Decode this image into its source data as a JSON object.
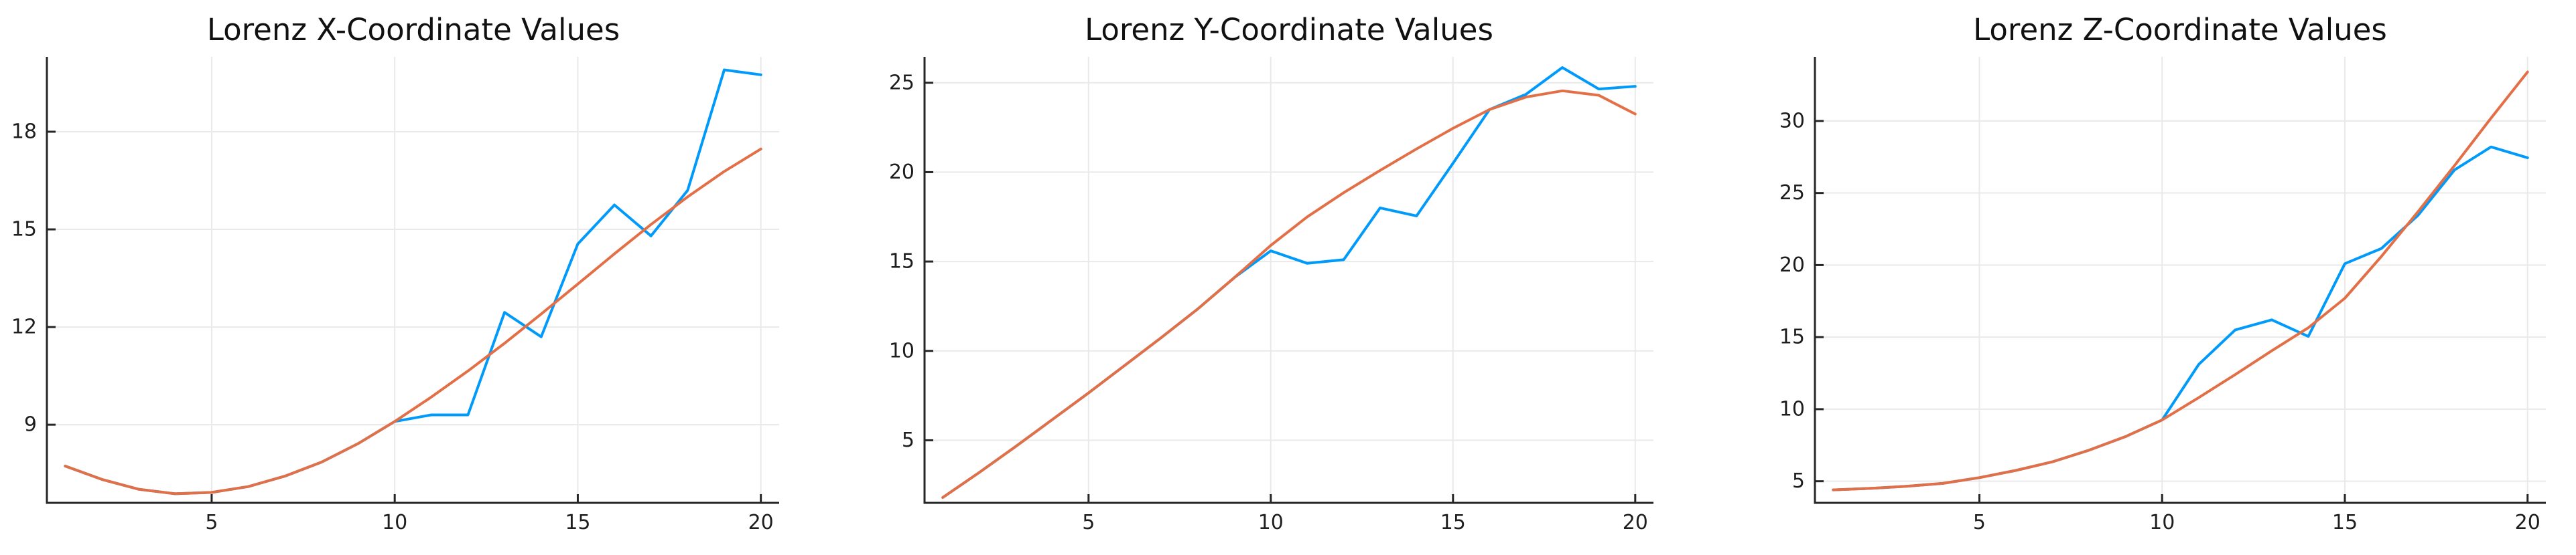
{
  "figure": {
    "background": "#ffffff",
    "palette": {
      "series1_blue": "#009AFA",
      "series2_orange": "#E36F47"
    }
  },
  "chart_data": [
    {
      "type": "line",
      "title": "Lorenz X-Coordinate Values",
      "xlabel": "",
      "ylabel": "",
      "x": [
        1,
        2,
        3,
        4,
        5,
        6,
        7,
        8,
        9,
        10,
        11,
        12,
        13,
        14,
        15,
        16,
        17,
        18,
        19,
        20
      ],
      "series": [
        {
          "name": "series-1-blue",
          "color": "#009AFA",
          "values": [
            7.73,
            7.32,
            7.02,
            6.88,
            6.92,
            7.1,
            7.42,
            7.85,
            8.42,
            9.1,
            9.3,
            9.3,
            12.45,
            11.7,
            14.55,
            15.75,
            14.8,
            16.2,
            19.9,
            19.75
          ]
        },
        {
          "name": "series-2-orange",
          "color": "#E36F47",
          "values": [
            7.73,
            7.32,
            7.02,
            6.88,
            6.92,
            7.1,
            7.42,
            7.85,
            8.42,
            9.1,
            9.85,
            10.65,
            11.5,
            12.4,
            13.32,
            14.25,
            15.15,
            16.0,
            16.78,
            17.47
          ]
        }
      ],
      "xticks": [
        5,
        10,
        15,
        20
      ],
      "yticks": [
        9,
        12,
        15,
        18
      ],
      "xlim": [
        0.5,
        20.5
      ],
      "ylim": [
        6.6,
        20.3
      ],
      "grid": true,
      "legend": "none"
    },
    {
      "type": "line",
      "title": "Lorenz Y-Coordinate Values",
      "xlabel": "",
      "ylabel": "",
      "x": [
        1,
        2,
        3,
        4,
        5,
        6,
        7,
        8,
        9,
        10,
        11,
        12,
        13,
        14,
        15,
        16,
        17,
        18,
        19,
        20
      ],
      "series": [
        {
          "name": "series-1-blue",
          "color": "#009AFA",
          "values": [
            1.8,
            3.2,
            4.65,
            6.15,
            7.65,
            9.2,
            10.75,
            12.35,
            14.1,
            15.6,
            14.9,
            15.1,
            18.0,
            17.55,
            20.5,
            23.5,
            24.35,
            25.85,
            24.65,
            24.8
          ]
        },
        {
          "name": "series-2-orange",
          "color": "#E36F47",
          "values": [
            1.8,
            3.2,
            4.65,
            6.15,
            7.65,
            9.2,
            10.75,
            12.35,
            14.1,
            15.9,
            17.5,
            18.85,
            20.1,
            21.3,
            22.45,
            23.5,
            24.2,
            24.55,
            24.3,
            23.25
          ]
        }
      ],
      "xticks": [
        5,
        10,
        15,
        20
      ],
      "yticks": [
        5,
        10,
        15,
        20,
        25
      ],
      "xlim": [
        0.5,
        20.5
      ],
      "ylim": [
        1.5,
        26.45
      ],
      "grid": true,
      "legend": "none"
    },
    {
      "type": "line",
      "title": "Lorenz Z-Coordinate Values",
      "xlabel": "",
      "ylabel": "",
      "x": [
        1,
        2,
        3,
        4,
        5,
        6,
        7,
        8,
        9,
        10,
        11,
        12,
        13,
        14,
        15,
        16,
        17,
        18,
        19,
        20
      ],
      "series": [
        {
          "name": "series-1-blue",
          "color": "#009AFA",
          "values": [
            4.4,
            4.5,
            4.65,
            4.85,
            5.25,
            5.75,
            6.35,
            7.15,
            8.1,
            9.25,
            13.1,
            15.5,
            16.2,
            15.05,
            20.1,
            21.15,
            23.45,
            26.6,
            28.2,
            27.45
          ]
        },
        {
          "name": "series-2-orange",
          "color": "#E36F47",
          "values": [
            4.4,
            4.5,
            4.65,
            4.85,
            5.25,
            5.75,
            6.35,
            7.15,
            8.1,
            9.25,
            10.8,
            12.4,
            14.05,
            15.65,
            17.7,
            20.6,
            23.7,
            26.9,
            30.2,
            33.4
          ]
        }
      ],
      "xticks": [
        5,
        10,
        15,
        20
      ],
      "yticks": [
        5,
        10,
        15,
        20,
        25,
        30
      ],
      "xlim": [
        0.5,
        20.5
      ],
      "ylim": [
        3.5,
        34.45
      ],
      "grid": true,
      "legend": "none"
    }
  ]
}
